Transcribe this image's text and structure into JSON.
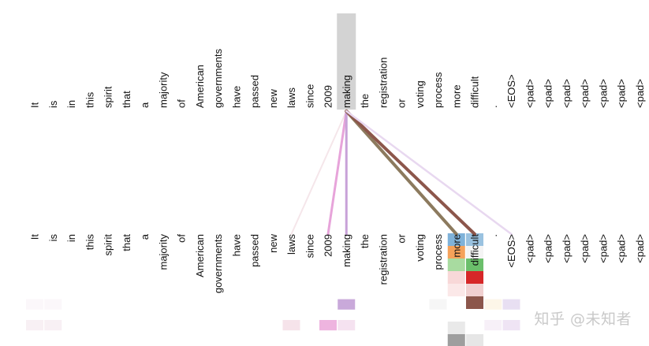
{
  "tokens": [
    "It",
    "is",
    "in",
    "this",
    "spirit",
    "that",
    "a",
    "majority",
    "of",
    "American",
    "governments",
    "have",
    "passed",
    "new",
    "laws",
    "since",
    "2009",
    "making",
    "the",
    "registration",
    "or",
    "voting",
    "process",
    "more",
    "difficult",
    ".",
    "<EOS>",
    "<pad>",
    "<pad>",
    "<pad>",
    "<pad>",
    "<pad>",
    "<pad>",
    "<pad>"
  ],
  "selected_token_index": 17,
  "colors": {
    "highlight": "#d3d3d3",
    "text": "#111111",
    "watermark": "#c9c9c9"
  },
  "attention_lines": [
    {
      "target": 14,
      "color": "#f5e6ea",
      "weight": 2
    },
    {
      "target": 16,
      "color": "#e7a4da",
      "weight": 3
    },
    {
      "target": 17,
      "color": "#c8a2d8",
      "weight": 3
    },
    {
      "target": 23,
      "color": "#8c7a5e",
      "weight": 4
    },
    {
      "target": 24,
      "color": "#8c564b",
      "weight": 4
    },
    {
      "target": 26,
      "color": "#e8d8f0",
      "weight": 2.5
    }
  ],
  "target_highlight_stack": [
    {
      "col": 23,
      "rows": [
        "#7fb2d9",
        "#f5a25a",
        "#a8dba0",
        "#f8d8d8",
        "#fbe8e8",
        "#ffffff",
        "#ffffff",
        "#e9e9e9",
        "#9e9e9e"
      ]
    },
    {
      "col": 24,
      "rows": [
        "#9ac2e0",
        "#f4f4f4",
        "#6bbf6b",
        "#d62728",
        "#f0d0d0",
        "#8c564b",
        "#ffffff",
        "#ffffff",
        "#e6e6e6"
      ]
    }
  ],
  "attention_cells": [
    {
      "col": 0,
      "row": 3,
      "color": "#fbf7fa"
    },
    {
      "col": 1,
      "row": 3,
      "color": "#fbf7fa"
    },
    {
      "col": 0,
      "row": 5,
      "color": "#f8f0f4"
    },
    {
      "col": 1,
      "row": 5,
      "color": "#f8f0f4"
    },
    {
      "col": 14,
      "row": 5,
      "color": "#f6e3ea"
    },
    {
      "col": 16,
      "row": 5,
      "color": "#eeb4df"
    },
    {
      "col": 17,
      "row": 5,
      "color": "#f5e2f0"
    },
    {
      "col": 17,
      "row": 3,
      "color": "#c9a9da"
    },
    {
      "col": 22,
      "row": 3,
      "color": "#f6f6f6"
    },
    {
      "col": 25,
      "row": 3,
      "color": "#fdf6e8"
    },
    {
      "col": 26,
      "row": 3,
      "color": "#e8dff2"
    },
    {
      "col": 26,
      "row": 5,
      "color": "#efe4f4"
    },
    {
      "col": 25,
      "row": 5,
      "color": "#f7f0f8"
    }
  ],
  "watermark": "知乎 @未知者"
}
